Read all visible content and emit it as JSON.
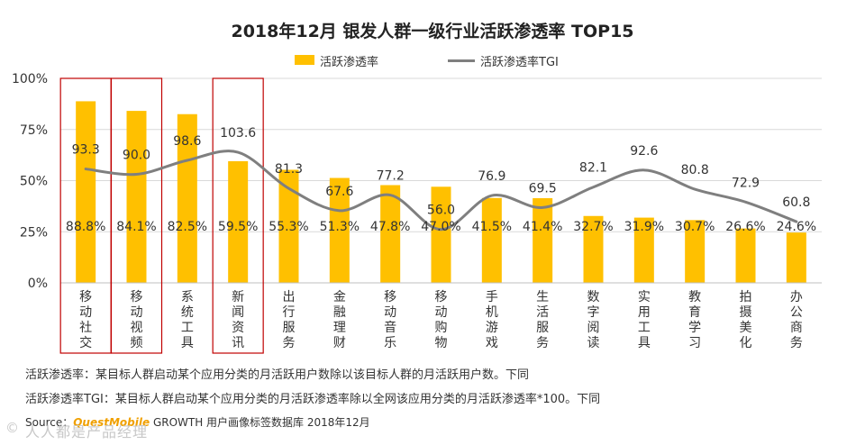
{
  "chart_data": {
    "type": "bar",
    "title": "2018年12月 银发人群一级行业活跃渗透率 TOP15",
    "categories": [
      "移动社交",
      "移动视频",
      "系统工具",
      "新闻资讯",
      "出行服务",
      "金融理财",
      "移动音乐",
      "移动购物",
      "手机游戏",
      "生活服务",
      "数字阅读",
      "实用工具",
      "教育学习",
      "拍摄美化",
      "办公商务"
    ],
    "series": [
      {
        "name": "活跃渗透率",
        "type": "bar",
        "values": [
          88.8,
          84.1,
          82.5,
          59.5,
          55.3,
          51.3,
          47.8,
          47.0,
          41.5,
          41.4,
          32.7,
          31.9,
          30.7,
          26.6,
          24.6
        ],
        "labels": [
          "88.8%",
          "84.1%",
          "82.5%",
          "59.5%",
          "55.3%",
          "51.3%",
          "47.8%",
          "47.0%",
          "41.5%",
          "41.4%",
          "32.7%",
          "31.9%",
          "30.7%",
          "26.6%",
          "24.6%"
        ]
      },
      {
        "name": "活跃渗透率TGI",
        "type": "line",
        "values": [
          93.3,
          90.0,
          98.6,
          103.6,
          81.3,
          67.6,
          77.2,
          56.0,
          76.9,
          69.5,
          82.1,
          92.6,
          80.8,
          72.9,
          60.8
        ],
        "labels": [
          "93.3",
          "90.0",
          "98.6",
          "103.6",
          "81.3",
          "67.6",
          "77.2",
          "56.0",
          "76.9",
          "69.5",
          "82.1",
          "92.6",
          "80.8",
          "72.9",
          "60.8"
        ]
      }
    ],
    "ylim": [
      0,
      100
    ],
    "yticks": [
      "0%",
      "25%",
      "50%",
      "75%",
      "100%"
    ],
    "highlighted": [
      "移动社交",
      "移动视频",
      "新闻资讯"
    ],
    "legend_position": "top-center",
    "colors": {
      "bar": "#ffc000",
      "line": "#7f7f7f",
      "highlight_box": "#c00000",
      "grid": "#d9d9d9"
    }
  },
  "notes": {
    "note1": "活跃渗透率：某目标人群启动某个应用分类的月活跃用户数除以该目标人群的月活跃用户数。下同",
    "note2": "活跃渗透率TGI：某目标人群启动某个应用分类的月活跃渗透率除以全网该应用分类的月活跃渗透率*100。下同"
  },
  "source": {
    "prefix": "Source：",
    "brand": "QuestMobile",
    "rest": " GROWTH 用户画像标签数据库 2018年12月"
  },
  "watermark": {
    "logo": "©",
    "text": "人人都是产品经理"
  }
}
